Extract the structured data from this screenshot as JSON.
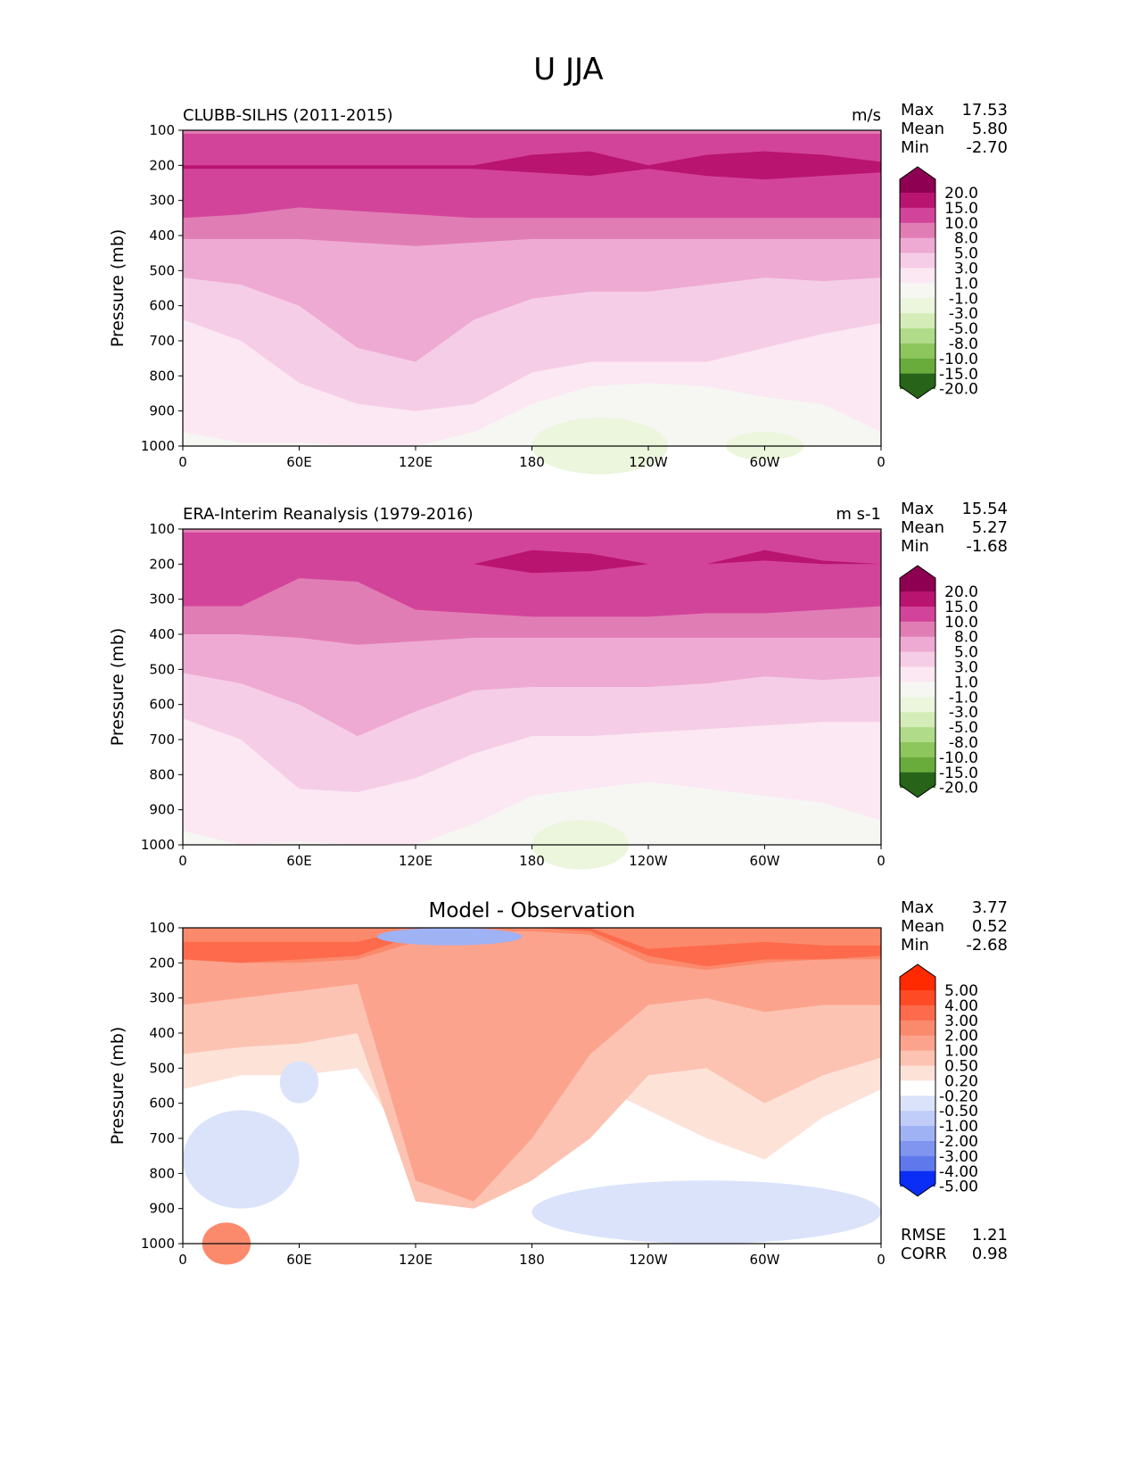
{
  "figure_title": "U JJA",
  "chart_data": [
    {
      "type": "heatmap",
      "panel": "model",
      "title_left": "CLUBB-SILHS (2011-2015)",
      "units": "m/s",
      "ylabel": "Pressure (mb)",
      "xticks": [
        "0",
        "60E",
        "120E",
        "180",
        "120W",
        "60W",
        "0"
      ],
      "x_range_deg": [
        0,
        360
      ],
      "yticks": [
        100,
        200,
        300,
        400,
        500,
        600,
        700,
        800,
        900,
        1000
      ],
      "y_range": [
        100,
        1000
      ],
      "stats": [
        {
          "label": "Max",
          "value": "17.53"
        },
        {
          "label": "Mean",
          "value": "5.80"
        },
        {
          "label": "Min",
          "value": "-2.70"
        }
      ],
      "colorbar_levels": [
        "20.0",
        "15.0",
        "10.0",
        "8.0",
        "5.0",
        "3.0",
        "1.0",
        "-1.0",
        "-3.0",
        "-5.0",
        "-8.0",
        "-10.0",
        "-15.0",
        "-20.0"
      ],
      "colorbar_colors": [
        "#8e0152",
        "#b91470",
        "#d2449a",
        "#e17db5",
        "#eeaad3",
        "#f6cde6",
        "#fbe8f3",
        "#f6f6f3",
        "#ebf6dc",
        "#d4edb8",
        "#b0dc8a",
        "#8cc65c",
        "#6aac3c",
        "#468d2b",
        "#276419"
      ]
    },
    {
      "type": "heatmap",
      "panel": "observation",
      "title_left": "ERA-Interim Reanalysis (1979-2016)",
      "units": "m s-1",
      "ylabel": "Pressure (mb)",
      "xticks": [
        "0",
        "60E",
        "120E",
        "180",
        "120W",
        "60W",
        "0"
      ],
      "x_range_deg": [
        0,
        360
      ],
      "yticks": [
        100,
        200,
        300,
        400,
        500,
        600,
        700,
        800,
        900,
        1000
      ],
      "y_range": [
        100,
        1000
      ],
      "stats": [
        {
          "label": "Max",
          "value": "15.54"
        },
        {
          "label": "Mean",
          "value": "5.27"
        },
        {
          "label": "Min",
          "value": "-1.68"
        }
      ],
      "colorbar_levels": [
        "20.0",
        "15.0",
        "10.0",
        "8.0",
        "5.0",
        "3.0",
        "1.0",
        "-1.0",
        "-3.0",
        "-5.0",
        "-8.0",
        "-10.0",
        "-15.0",
        "-20.0"
      ],
      "colorbar_colors": [
        "#8e0152",
        "#b91470",
        "#d2449a",
        "#e17db5",
        "#eeaad3",
        "#f6cde6",
        "#fbe8f3",
        "#f6f6f3",
        "#ebf6dc",
        "#d4edb8",
        "#b0dc8a",
        "#8cc65c",
        "#6aac3c",
        "#468d2b",
        "#276419"
      ]
    },
    {
      "type": "heatmap",
      "panel": "difference",
      "title_center": "Model - Observation",
      "ylabel": "Pressure (mb)",
      "xticks": [
        "0",
        "60E",
        "120E",
        "180",
        "120W",
        "60W",
        "0"
      ],
      "x_range_deg": [
        0,
        360
      ],
      "yticks": [
        100,
        200,
        300,
        400,
        500,
        600,
        700,
        800,
        900,
        1000
      ],
      "y_range": [
        100,
        1000
      ],
      "stats": [
        {
          "label": "Max",
          "value": "3.77"
        },
        {
          "label": "Mean",
          "value": "0.52"
        },
        {
          "label": "Min",
          "value": "-2.68"
        }
      ],
      "extra_stats": [
        {
          "label": "RMSE",
          "value": "1.21"
        },
        {
          "label": "CORR",
          "value": "0.98"
        }
      ],
      "colorbar_levels": [
        "5.00",
        "4.00",
        "3.00",
        "2.00",
        "1.00",
        "0.50",
        "0.20",
        "-0.20",
        "-0.50",
        "-1.00",
        "-2.00",
        "-3.00",
        "-4.00",
        "-5.00"
      ],
      "colorbar_colors": [
        "#ff2a00",
        "#ff4a26",
        "#fd6a4c",
        "#fb8a6c",
        "#fca38e",
        "#fcc3b2",
        "#fde2d8",
        "#ffffff",
        "#dbe3fb",
        "#bfcdf8",
        "#9fb2f4",
        "#7f95f0",
        "#5f79ec",
        "#3d59e6",
        "#0a2ef5"
      ]
    }
  ]
}
